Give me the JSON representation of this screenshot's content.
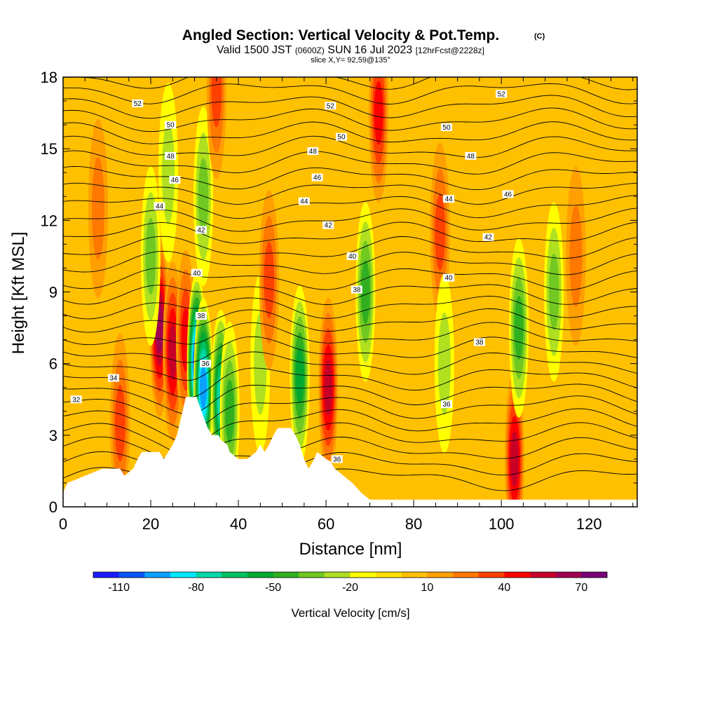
{
  "chart_data": {
    "type": "heatmap",
    "title": "Angled Section: Vertical Velocity & Pot.Temp.",
    "title_mark": "(C)",
    "subtitle_a": "Valid 1500 JST",
    "subtitle_b": "(0600Z)",
    "subtitle_c": "SUN 16 Jul 2023",
    "subtitle_d": "[12hrFcst@2228z]",
    "slice_text": "slice X,Y= 92,59@135°",
    "xlabel": "Distance [nm]",
    "ylabel": "Height [Kft MSL]",
    "xlim": [
      0,
      131
    ],
    "ylim": [
      0,
      18
    ],
    "x_ticks": [
      0,
      20,
      40,
      60,
      80,
      100,
      120
    ],
    "x_tick_labels": [
      "0",
      "20",
      "40",
      "60",
      "80",
      "100",
      "120"
    ],
    "y_ticks": [
      0,
      3,
      6,
      9,
      12,
      15,
      18
    ],
    "y_tick_labels": [
      "0",
      "3",
      "6",
      "9",
      "12",
      "15",
      "18"
    ],
    "colorbar": {
      "label": "Vertical Velocity [cm/s]",
      "bounds": [
        -120,
        -110,
        -100,
        -90,
        -80,
        -70,
        -60,
        -50,
        -40,
        -30,
        -20,
        -10,
        0,
        10,
        20,
        30,
        40,
        50,
        60,
        70,
        80
      ],
      "colors": [
        "#1a1aff",
        "#0a55ff",
        "#0aa0ff",
        "#00e8ff",
        "#00d8a8",
        "#00c060",
        "#00a830",
        "#30b020",
        "#70c820",
        "#b0e020",
        "#ffff00",
        "#ffe000",
        "#ffc000",
        "#ffa000",
        "#ff7800",
        "#ff4000",
        "#ff0000",
        "#c80028",
        "#a00050",
        "#780078"
      ],
      "tick_values": [
        -110,
        -80,
        -50,
        -20,
        10,
        40,
        70
      ],
      "tick_labels": [
        "-110",
        "-80",
        "-50",
        "-20",
        "10",
        "40",
        "70"
      ]
    },
    "vertical_velocity_features": [
      {
        "x": 13,
        "z": 3.5,
        "w": 35
      },
      {
        "x": 22,
        "z": 7.5,
        "w": 60
      },
      {
        "x": 25,
        "z": 6.5,
        "w": 55
      },
      {
        "x": 28,
        "z": 7.0,
        "w": 45
      },
      {
        "x": 30.5,
        "z": 6.0,
        "w": -100
      },
      {
        "x": 32,
        "z": 5.0,
        "w": -90
      },
      {
        "x": 36,
        "z": 4.5,
        "w": -75
      },
      {
        "x": 38,
        "z": 4.0,
        "w": -40
      },
      {
        "x": 20,
        "z": 10.5,
        "w": -30
      },
      {
        "x": 24,
        "z": 14.0,
        "w": -25
      },
      {
        "x": 32,
        "z": 13.0,
        "w": -30
      },
      {
        "x": 45,
        "z": 6.0,
        "w": -20
      },
      {
        "x": 47,
        "z": 9.5,
        "w": 35
      },
      {
        "x": 54,
        "z": 5.5,
        "w": -50
      },
      {
        "x": 60.5,
        "z": 5.0,
        "w": 55
      },
      {
        "x": 69,
        "z": 9.0,
        "w": -45
      },
      {
        "x": 72,
        "z": 16.5,
        "w": 40
      },
      {
        "x": 86,
        "z": 11.5,
        "w": 35
      },
      {
        "x": 87,
        "z": 6.0,
        "w": -25
      },
      {
        "x": 103,
        "z": 2.0,
        "w": 50
      },
      {
        "x": 104,
        "z": 7.5,
        "w": -40
      },
      {
        "x": 112,
        "z": 9.0,
        "w": -35
      },
      {
        "x": 117,
        "z": 10.5,
        "w": 25
      },
      {
        "x": 8,
        "z": 12.5,
        "w": 25
      },
      {
        "x": 35,
        "z": 17.5,
        "w": 30
      }
    ],
    "theta_contour_labels": [
      {
        "label": "52",
        "x": 17,
        "z": 16.9
      },
      {
        "label": "50",
        "x": 24.5,
        "z": 16.0
      },
      {
        "label": "48",
        "x": 24.5,
        "z": 14.7
      },
      {
        "label": "46",
        "x": 25.5,
        "z": 13.7
      },
      {
        "label": "44",
        "x": 22,
        "z": 12.6
      },
      {
        "label": "42",
        "x": 31.5,
        "z": 11.6
      },
      {
        "label": "40",
        "x": 30.5,
        "z": 9.8
      },
      {
        "label": "38",
        "x": 31.5,
        "z": 8.0
      },
      {
        "label": "36",
        "x": 32.5,
        "z": 6.0
      },
      {
        "label": "34",
        "x": 11.5,
        "z": 5.4
      },
      {
        "label": "32",
        "x": 3,
        "z": 4.5
      },
      {
        "label": "52",
        "x": 61,
        "z": 16.8
      },
      {
        "label": "50",
        "x": 63.5,
        "z": 15.5
      },
      {
        "label": "48",
        "x": 57,
        "z": 14.9
      },
      {
        "label": "46",
        "x": 58,
        "z": 13.8
      },
      {
        "label": "44",
        "x": 55,
        "z": 12.8
      },
      {
        "label": "42",
        "x": 60.5,
        "z": 11.8
      },
      {
        "label": "40",
        "x": 66,
        "z": 10.5
      },
      {
        "label": "38",
        "x": 67,
        "z": 9.1
      },
      {
        "label": "36",
        "x": 62.5,
        "z": 2.0
      },
      {
        "label": "52",
        "x": 100,
        "z": 17.3
      },
      {
        "label": "50",
        "x": 87.5,
        "z": 15.9
      },
      {
        "label": "48",
        "x": 93,
        "z": 14.7
      },
      {
        "label": "46",
        "x": 101.5,
        "z": 13.1
      },
      {
        "label": "44",
        "x": 88,
        "z": 12.9
      },
      {
        "label": "42",
        "x": 97,
        "z": 11.3
      },
      {
        "label": "40",
        "x": 88,
        "z": 9.6
      },
      {
        "label": "38",
        "x": 95,
        "z": 6.9
      },
      {
        "label": "36",
        "x": 87.5,
        "z": 4.3
      }
    ],
    "terrain_kft": [
      [
        0,
        0.6
      ],
      [
        1,
        1.0
      ],
      [
        5,
        1.3
      ],
      [
        9,
        1.6
      ],
      [
        13,
        1.6
      ],
      [
        14,
        1.3
      ],
      [
        16,
        1.6
      ],
      [
        17,
        2.0
      ],
      [
        18,
        2.3
      ],
      [
        22,
        2.3
      ],
      [
        23,
        2.0
      ],
      [
        24,
        2.3
      ],
      [
        25,
        2.6
      ],
      [
        26,
        3.0
      ],
      [
        27,
        3.8
      ],
      [
        28,
        4.6
      ],
      [
        30.5,
        4.6
      ],
      [
        31,
        4.3
      ],
      [
        32,
        3.8
      ],
      [
        33,
        3.3
      ],
      [
        34,
        3.0
      ],
      [
        35.5,
        3.0
      ],
      [
        36,
        2.8
      ],
      [
        37.5,
        2.6
      ],
      [
        38,
        2.3
      ],
      [
        40,
        2.0
      ],
      [
        42,
        2.0
      ],
      [
        44,
        2.3
      ],
      [
        45,
        2.6
      ],
      [
        46,
        2.3
      ],
      [
        47,
        2.6
      ],
      [
        48,
        3.0
      ],
      [
        49,
        3.3
      ],
      [
        52,
        3.3
      ],
      [
        53,
        3.0
      ],
      [
        54,
        2.6
      ],
      [
        55,
        2.0
      ],
      [
        56,
        1.6
      ],
      [
        57,
        1.9
      ],
      [
        58,
        2.3
      ],
      [
        60,
        2.0
      ],
      [
        61,
        1.9
      ],
      [
        62,
        1.6
      ],
      [
        64,
        1.3
      ],
      [
        66,
        1.0
      ],
      [
        68,
        0.6
      ],
      [
        70,
        0.3
      ],
      [
        131,
        0.3
      ]
    ]
  }
}
